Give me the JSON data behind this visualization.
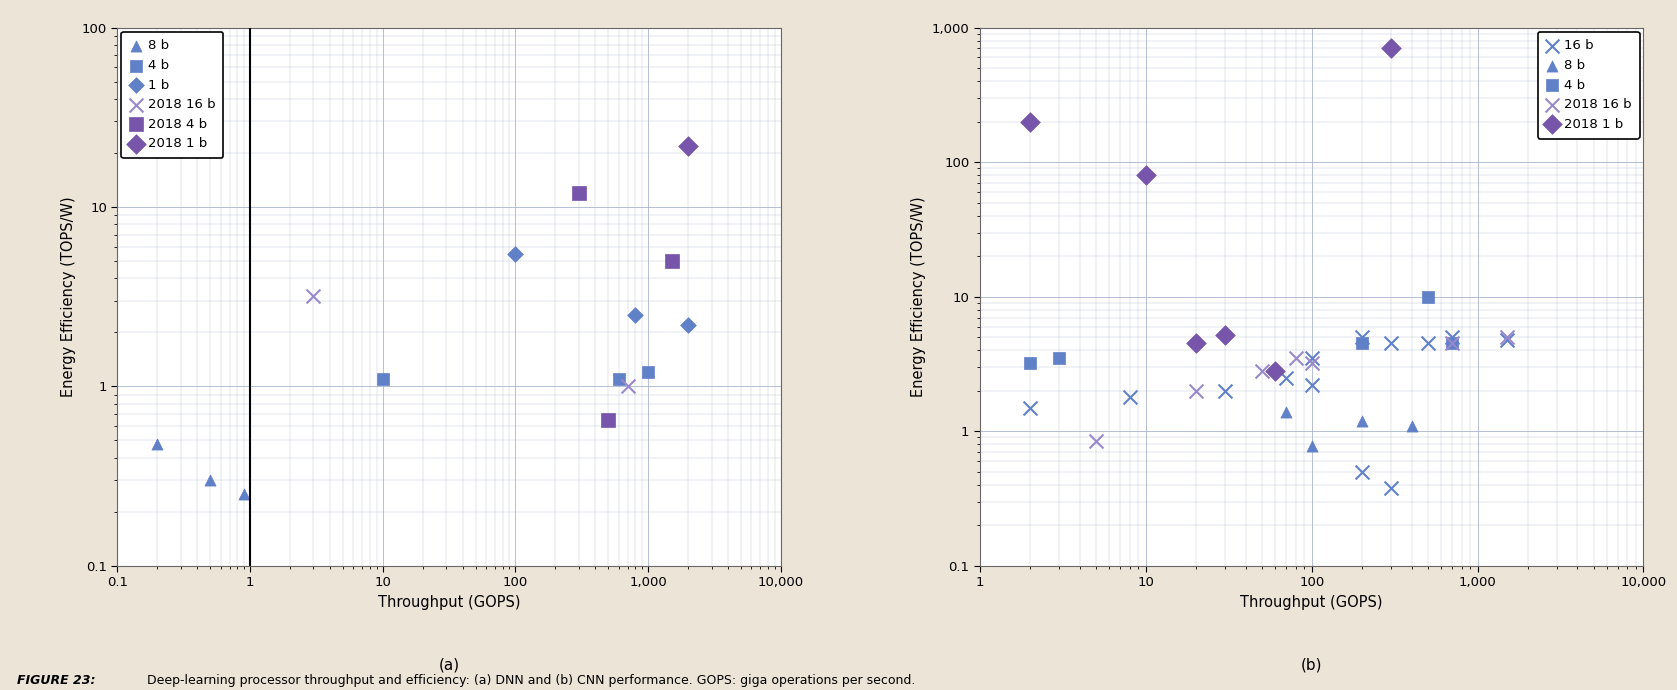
{
  "background_color": "#ede4d8",
  "plot_bg_color": "#ffffff",
  "fig_caption_bold": "FIGURE 23:",
  "fig_caption_rest": " Deep-learning processor throughput and efficiency: (a) DNN and (b) CNN performance. GOPS: giga operations per second.",
  "plot_a": {
    "title": "(a)",
    "xlabel": "Throughput (GOPS)",
    "ylabel": "Energy Efficiency (TOPS/W)",
    "xlim": [
      0.1,
      10000
    ],
    "ylim": [
      0.1,
      100
    ],
    "vline_x": 1.0,
    "series": [
      {
        "label": "8 b",
        "color": "#6080c8",
        "marker": "^",
        "markersize": 8,
        "points": [
          [
            0.2,
            0.48
          ],
          [
            0.5,
            0.3
          ],
          [
            0.9,
            0.25
          ]
        ]
      },
      {
        "label": "4 b",
        "color": "#6080c8",
        "marker": "s",
        "markersize": 8,
        "points": [
          [
            10,
            1.1
          ],
          [
            600,
            1.1
          ],
          [
            1000,
            1.2
          ]
        ]
      },
      {
        "label": "1 b",
        "color": "#6080c8",
        "marker": "D",
        "markersize": 8,
        "points": [
          [
            100,
            5.5
          ],
          [
            800,
            2.5
          ],
          [
            2000,
            2.2
          ]
        ]
      },
      {
        "label": "2018 16 b",
        "color": "#9988cc",
        "marker": "x",
        "markersize": 10,
        "points": [
          [
            3,
            3.2
          ],
          [
            700,
            1.0
          ]
        ]
      },
      {
        "label": "2018 4 b",
        "color": "#7755aa",
        "marker": "s",
        "markersize": 10,
        "points": [
          [
            300,
            12
          ],
          [
            500,
            0.65
          ],
          [
            1500,
            5.0
          ]
        ]
      },
      {
        "label": "2018 1 b",
        "color": "#7755aa",
        "marker": "D",
        "markersize": 10,
        "points": [
          [
            2000,
            22
          ]
        ]
      }
    ]
  },
  "plot_b": {
    "title": "(b)",
    "xlabel": "Throughput (GOPS)",
    "ylabel": "Energy Efficiency (TOPS/W)",
    "xlim": [
      1,
      10000
    ],
    "ylim": [
      0.1,
      1000
    ],
    "series": [
      {
        "label": "16 b",
        "color": "#6080c8",
        "marker": "x",
        "markersize": 10,
        "points": [
          [
            2,
            1.5
          ],
          [
            8,
            1.8
          ],
          [
            30,
            2.0
          ],
          [
            70,
            2.5
          ],
          [
            100,
            2.2
          ],
          [
            100,
            3.5
          ],
          [
            200,
            5.0
          ],
          [
            300,
            4.5
          ],
          [
            500,
            4.5
          ],
          [
            700,
            5.0
          ],
          [
            1500,
            4.8
          ],
          [
            200,
            0.5
          ],
          [
            300,
            0.38
          ]
        ]
      },
      {
        "label": "8 b",
        "color": "#6080c8",
        "marker": "^",
        "markersize": 8,
        "points": [
          [
            70,
            1.4
          ],
          [
            100,
            0.78
          ],
          [
            200,
            1.2
          ],
          [
            400,
            1.1
          ]
        ]
      },
      {
        "label": "4 b",
        "color": "#6080c8",
        "marker": "s",
        "markersize": 8,
        "points": [
          [
            2,
            3.2
          ],
          [
            3,
            3.5
          ],
          [
            200,
            4.5
          ],
          [
            500,
            10
          ],
          [
            700,
            4.5
          ]
        ]
      },
      {
        "label": "2018 16 b",
        "color": "#9988cc",
        "marker": "x",
        "markersize": 10,
        "points": [
          [
            5,
            0.85
          ],
          [
            20,
            2.0
          ],
          [
            50,
            2.8
          ],
          [
            80,
            3.5
          ],
          [
            100,
            3.2
          ],
          [
            700,
            4.5
          ],
          [
            1500,
            5.0
          ]
        ]
      },
      {
        "label": "2018 1 b",
        "color": "#7755aa",
        "marker": "D",
        "markersize": 10,
        "points": [
          [
            2,
            200
          ],
          [
            10,
            80
          ],
          [
            20,
            4.5
          ],
          [
            30,
            5.2
          ],
          [
            60,
            2.8
          ],
          [
            300,
            700
          ]
        ]
      }
    ]
  }
}
